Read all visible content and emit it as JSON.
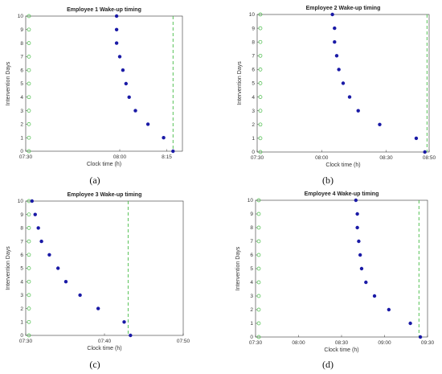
{
  "chart_data": [
    {
      "type": "scatter",
      "title": "Employee 1 Wake-up timing",
      "xlabel": "Clock time (h)",
      "ylabel": "Intervention Days",
      "caption": "(a)",
      "xlim": [
        "07:30",
        "08:20"
      ],
      "ylim": [
        0,
        10
      ],
      "x_ticks": [
        "07:30",
        "08:00",
        "8:15"
      ],
      "y_ticks": [
        "0",
        "1",
        "2",
        "3",
        "4",
        "5",
        "6",
        "7",
        "8",
        "9",
        "10"
      ],
      "reference_x": "07:30",
      "target_x": "08:17",
      "series": [
        {
          "days": [
            10,
            9,
            8,
            7,
            6,
            5,
            4,
            3,
            2,
            1,
            0
          ],
          "times": [
            "07:59",
            "07:59",
            "07:59",
            "08:00",
            "08:01",
            "08:02",
            "08:03",
            "08:05",
            "08:09",
            "08:14",
            "08:17"
          ]
        }
      ],
      "colors": {
        "wake": "#1a1aa6",
        "reference": "#44bb44"
      }
    },
    {
      "type": "scatter",
      "title": "Employee 2 Wake-up timing",
      "xlabel": "Clock time (h)",
      "ylabel": "Intervention Days",
      "caption": "(b)",
      "xlim": [
        "07:30",
        "08:50"
      ],
      "ylim": [
        0,
        10
      ],
      "x_ticks": [
        "07:30",
        "08:00",
        "08:30",
        "08:50"
      ],
      "y_ticks": [
        "0",
        "1",
        "2",
        "3",
        "4",
        "5",
        "6",
        "7",
        "8",
        "9",
        "10"
      ],
      "reference_x": "07:30",
      "target_x": "08:49",
      "series": [
        {
          "days": [
            10,
            9,
            8,
            7,
            6,
            5,
            4,
            3,
            2,
            1,
            0
          ],
          "times": [
            "08:05",
            "08:06",
            "08:06",
            "08:07",
            "08:08",
            "08:10",
            "08:13",
            "08:17",
            "08:27",
            "08:44",
            "08:48"
          ]
        }
      ],
      "colors": {
        "wake": "#1a1aa6",
        "reference": "#44bb44"
      }
    },
    {
      "type": "scatter",
      "title": "Employee 3 Wake-up timing",
      "xlabel": "Clock time (h)",
      "ylabel": "Intervention Days",
      "caption": "(c)",
      "xlim": [
        "07:30",
        "07:50"
      ],
      "ylim": [
        0,
        10
      ],
      "x_ticks": [
        "07:30",
        "07:40",
        "07:50"
      ],
      "y_ticks": [
        "0",
        "1",
        "2",
        "3",
        "4",
        "5",
        "6",
        "7",
        "8",
        "9",
        "10"
      ],
      "reference_x": "07:30",
      "target_x": "07:43",
      "series": [
        {
          "days": [
            10,
            9,
            8,
            7,
            6,
            5,
            4,
            3,
            2,
            1,
            0
          ],
          "times": [
            "07:30.8",
            "07:31.2",
            "07:31.6",
            "07:32",
            "07:33",
            "07:34.1",
            "07:35.1",
            "07:36.9",
            "07:39.2",
            "07:42.5",
            "07:43.3"
          ]
        }
      ],
      "colors": {
        "wake": "#1a1aa6",
        "reference": "#44bb44"
      }
    },
    {
      "type": "scatter",
      "title": "Employee 4 Wake-up timing",
      "xlabel": "Clock time (h)",
      "ylabel": "Intervention Days",
      "caption": "(d)",
      "xlim": [
        "07:30",
        "09:30"
      ],
      "ylim": [
        0,
        10
      ],
      "x_ticks": [
        "07:30",
        "08:00",
        "08:30",
        "09:00",
        "09:30"
      ],
      "y_ticks": [
        "0",
        "1",
        "2",
        "3",
        "4",
        "5",
        "6",
        "7",
        "8",
        "9",
        "10"
      ],
      "reference_x": "07:30",
      "target_x": "09:24",
      "series": [
        {
          "days": [
            10,
            9,
            8,
            7,
            6,
            5,
            4,
            3,
            2,
            1,
            0
          ],
          "times": [
            "08:40",
            "08:41",
            "08:41",
            "08:42",
            "08:43",
            "08:44",
            "08:47",
            "08:53",
            "09:03",
            "09:18",
            "09:25"
          ]
        }
      ],
      "colors": {
        "wake": "#1a1aa6",
        "reference": "#44bb44"
      }
    }
  ]
}
